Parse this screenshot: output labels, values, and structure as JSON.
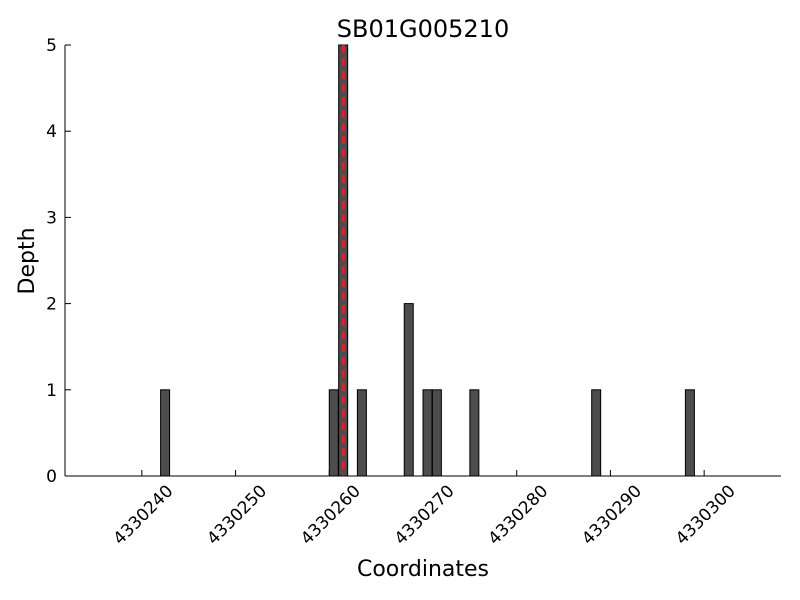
{
  "chart_data": {
    "type": "bar",
    "title": "SB01G005210",
    "xlabel": "Coordinates",
    "ylabel": "Depth",
    "x": [
      4330242,
      4330260,
      4330261,
      4330263,
      4330268,
      4330270,
      4330271,
      4330275,
      4330288,
      4330298
    ],
    "values": [
      1,
      1,
      5,
      1,
      2,
      1,
      1,
      1,
      1,
      1
    ],
    "color": "#4d4d4d",
    "highlight_x": 4330261.5,
    "highlight_color": "#d62728",
    "xlim": [
      4330231.8,
      4330308.2
    ],
    "xticks": [
      4330240,
      4330250,
      4330260,
      4330270,
      4330280,
      4330290,
      4330300
    ],
    "ylim": [
      0,
      5
    ],
    "yticks": [
      0,
      1,
      2,
      3,
      4,
      5
    ]
  }
}
